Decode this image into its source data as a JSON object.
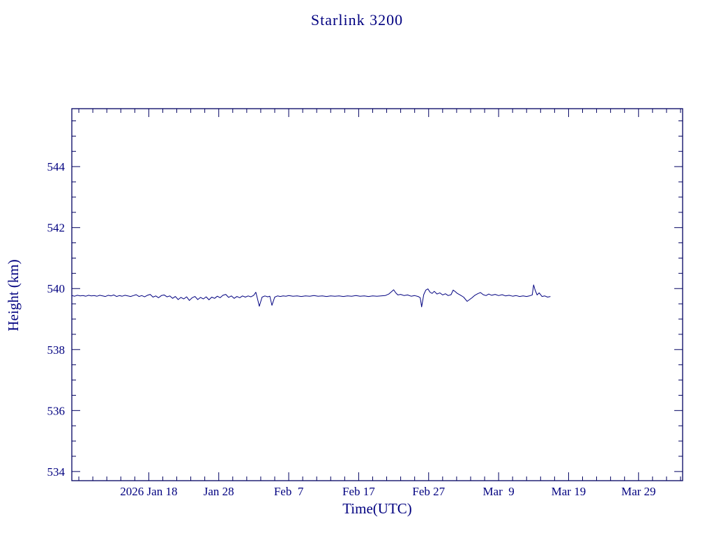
{
  "page": {
    "background": "#ffffff"
  },
  "chart_data": {
    "type": "line",
    "title": "Starlink 3200",
    "xlabel": "Time(UTC)",
    "ylabel": "Height (km)",
    "text_color": "#000080",
    "series_color": "#000080",
    "frame_color": "#000060",
    "grid": false,
    "legend": null,
    "x_unit": "day_of_year_2026",
    "xlim": [
      7,
      94.3
    ],
    "ylim": [
      533.7,
      545.9
    ],
    "x_minor_step": 2,
    "y_minor_step": 0.5,
    "xticks": [
      {
        "day": 18,
        "label": "2026 Jan 18"
      },
      {
        "day": 28,
        "label": "Jan 28"
      },
      {
        "day": 38,
        "label": "Feb  7"
      },
      {
        "day": 48,
        "label": "Feb 17"
      },
      {
        "day": 58,
        "label": "Feb 27"
      },
      {
        "day": 68,
        "label": "Mar  9"
      },
      {
        "day": 78,
        "label": "Mar 19"
      },
      {
        "day": 88,
        "label": "Mar 29"
      }
    ],
    "yticks": [
      {
        "value": 534,
        "label": "534"
      },
      {
        "value": 536,
        "label": "536"
      },
      {
        "value": 538,
        "label": "538"
      },
      {
        "value": 540,
        "label": "540"
      },
      {
        "value": 542,
        "label": "542"
      },
      {
        "value": 544,
        "label": "544"
      }
    ],
    "points": [
      [
        7.0,
        539.77
      ],
      [
        7.4,
        539.75
      ],
      [
        7.8,
        539.78
      ],
      [
        8.2,
        539.76
      ],
      [
        8.6,
        539.77
      ],
      [
        9.0,
        539.75
      ],
      [
        9.4,
        539.78
      ],
      [
        9.8,
        539.76
      ],
      [
        10.2,
        539.77
      ],
      [
        10.6,
        539.75
      ],
      [
        11.0,
        539.78
      ],
      [
        11.4,
        539.76
      ],
      [
        11.8,
        539.74
      ],
      [
        12.2,
        539.78
      ],
      [
        12.6,
        539.76
      ],
      [
        13.0,
        539.79
      ],
      [
        13.4,
        539.74
      ],
      [
        13.8,
        539.77
      ],
      [
        14.2,
        539.75
      ],
      [
        14.6,
        539.78
      ],
      [
        15.0,
        539.76
      ],
      [
        15.4,
        539.74
      ],
      [
        15.8,
        539.77
      ],
      [
        16.2,
        539.8
      ],
      [
        16.6,
        539.74
      ],
      [
        17.0,
        539.77
      ],
      [
        17.4,
        539.73
      ],
      [
        17.8,
        539.78
      ],
      [
        18.2,
        539.81
      ],
      [
        18.6,
        539.72
      ],
      [
        19.0,
        539.76
      ],
      [
        19.4,
        539.7
      ],
      [
        19.8,
        539.77
      ],
      [
        20.2,
        539.79
      ],
      [
        20.6,
        539.73
      ],
      [
        21.0,
        539.76
      ],
      [
        21.4,
        539.68
      ],
      [
        21.8,
        539.74
      ],
      [
        22.2,
        539.64
      ],
      [
        22.6,
        539.71
      ],
      [
        23.0,
        539.66
      ],
      [
        23.4,
        539.73
      ],
      [
        23.8,
        539.61
      ],
      [
        24.2,
        539.7
      ],
      [
        24.6,
        539.74
      ],
      [
        25.0,
        539.64
      ],
      [
        25.4,
        539.71
      ],
      [
        25.8,
        539.66
      ],
      [
        26.2,
        539.73
      ],
      [
        26.6,
        539.63
      ],
      [
        27.0,
        539.72
      ],
      [
        27.4,
        539.68
      ],
      [
        27.8,
        539.75
      ],
      [
        28.2,
        539.7
      ],
      [
        28.6,
        539.78
      ],
      [
        29.0,
        539.81
      ],
      [
        29.4,
        539.71
      ],
      [
        29.8,
        539.76
      ],
      [
        30.2,
        539.68
      ],
      [
        30.6,
        539.74
      ],
      [
        31.0,
        539.7
      ],
      [
        31.4,
        539.76
      ],
      [
        31.8,
        539.72
      ],
      [
        32.2,
        539.76
      ],
      [
        32.6,
        539.73
      ],
      [
        33.0,
        539.78
      ],
      [
        33.3,
        539.88
      ],
      [
        33.5,
        539.7
      ],
      [
        33.8,
        539.42
      ],
      [
        34.2,
        539.72
      ],
      [
        34.6,
        539.76
      ],
      [
        35.0,
        539.73
      ],
      [
        35.3,
        539.75
      ],
      [
        35.6,
        539.45
      ],
      [
        36.0,
        539.72
      ],
      [
        36.4,
        539.76
      ],
      [
        36.8,
        539.74
      ],
      [
        37.2,
        539.76
      ],
      [
        37.6,
        539.75
      ],
      [
        38.0,
        539.77
      ],
      [
        38.6,
        539.75
      ],
      [
        39.2,
        539.76
      ],
      [
        39.8,
        539.74
      ],
      [
        40.4,
        539.76
      ],
      [
        41.0,
        539.75
      ],
      [
        41.6,
        539.77
      ],
      [
        42.2,
        539.75
      ],
      [
        42.8,
        539.76
      ],
      [
        43.4,
        539.74
      ],
      [
        44.0,
        539.76
      ],
      [
        44.6,
        539.75
      ],
      [
        45.2,
        539.76
      ],
      [
        45.8,
        539.74
      ],
      [
        46.4,
        539.76
      ],
      [
        47.0,
        539.75
      ],
      [
        47.6,
        539.77
      ],
      [
        48.2,
        539.75
      ],
      [
        48.8,
        539.76
      ],
      [
        49.4,
        539.74
      ],
      [
        50.0,
        539.76
      ],
      [
        50.6,
        539.75
      ],
      [
        51.2,
        539.76
      ],
      [
        51.8,
        539.77
      ],
      [
        52.3,
        539.82
      ],
      [
        52.7,
        539.9
      ],
      [
        53.0,
        539.96
      ],
      [
        53.3,
        539.86
      ],
      [
        53.6,
        539.79
      ],
      [
        54.0,
        539.81
      ],
      [
        54.5,
        539.77
      ],
      [
        55.0,
        539.79
      ],
      [
        55.5,
        539.75
      ],
      [
        56.0,
        539.77
      ],
      [
        56.5,
        539.74
      ],
      [
        56.8,
        539.7
      ],
      [
        57.0,
        539.4
      ],
      [
        57.3,
        539.8
      ],
      [
        57.6,
        539.95
      ],
      [
        57.9,
        539.99
      ],
      [
        58.2,
        539.88
      ],
      [
        58.5,
        539.84
      ],
      [
        58.8,
        539.91
      ],
      [
        59.2,
        539.82
      ],
      [
        59.6,
        539.86
      ],
      [
        60.0,
        539.79
      ],
      [
        60.4,
        539.83
      ],
      [
        60.8,
        539.77
      ],
      [
        61.2,
        539.8
      ],
      [
        61.5,
        539.95
      ],
      [
        61.8,
        539.9
      ],
      [
        62.1,
        539.84
      ],
      [
        62.5,
        539.79
      ],
      [
        63.0,
        539.72
      ],
      [
        63.5,
        539.58
      ],
      [
        63.8,
        539.63
      ],
      [
        64.2,
        539.7
      ],
      [
        64.6,
        539.78
      ],
      [
        65.0,
        539.83
      ],
      [
        65.4,
        539.87
      ],
      [
        65.8,
        539.8
      ],
      [
        66.2,
        539.77
      ],
      [
        66.6,
        539.82
      ],
      [
        67.0,
        539.78
      ],
      [
        67.5,
        539.81
      ],
      [
        68.0,
        539.77
      ],
      [
        68.5,
        539.8
      ],
      [
        69.0,
        539.76
      ],
      [
        69.5,
        539.78
      ],
      [
        70.0,
        539.75
      ],
      [
        70.5,
        539.77
      ],
      [
        71.0,
        539.74
      ],
      [
        71.5,
        539.76
      ],
      [
        72.0,
        539.74
      ],
      [
        72.4,
        539.76
      ],
      [
        72.8,
        539.79
      ],
      [
        73.0,
        540.12
      ],
      [
        73.2,
        539.96
      ],
      [
        73.5,
        539.79
      ],
      [
        73.8,
        539.86
      ],
      [
        74.2,
        539.74
      ],
      [
        74.6,
        539.76
      ],
      [
        75.0,
        539.72
      ],
      [
        75.4,
        539.74
      ]
    ]
  }
}
